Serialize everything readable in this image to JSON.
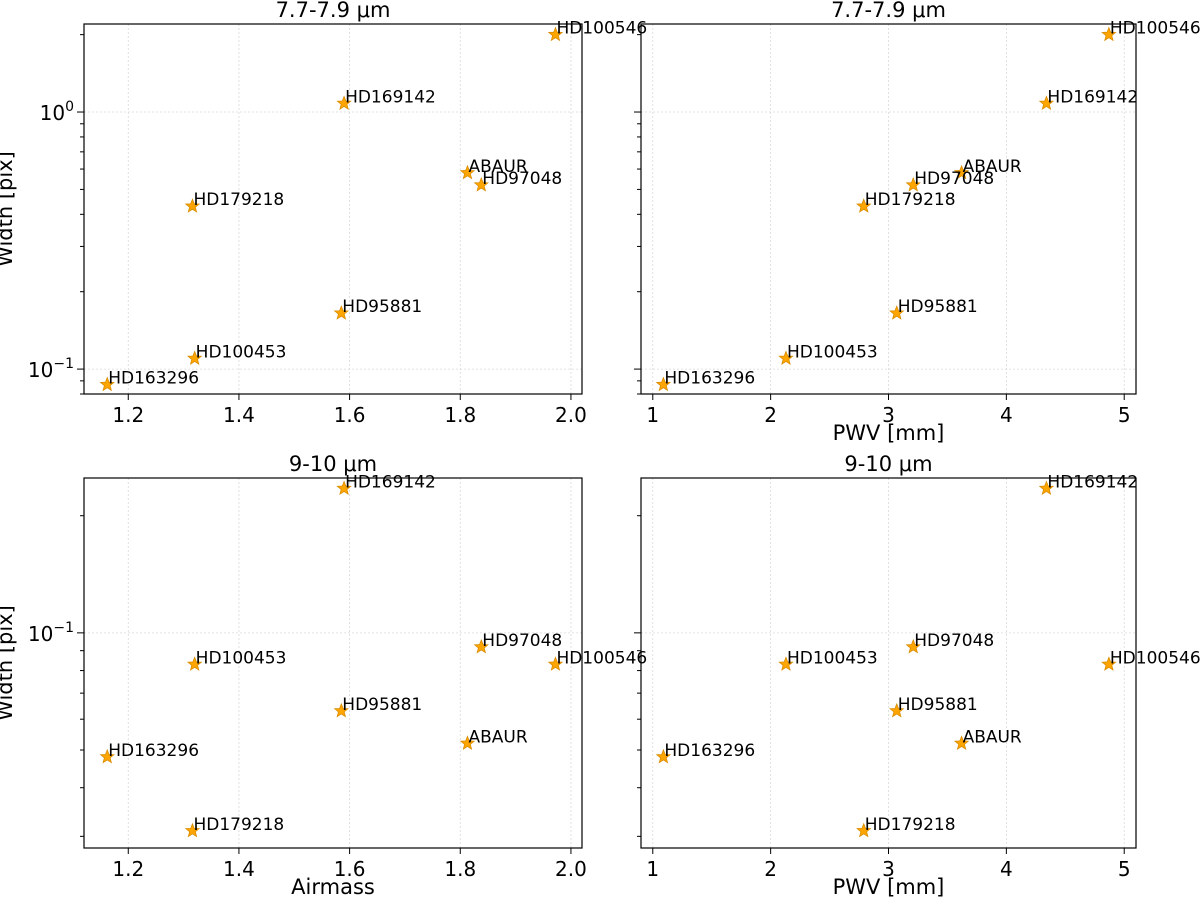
{
  "chart_data": [
    {
      "type": "scatter",
      "title": "7.7-7.9 μm",
      "xlabel": "",
      "ylabel": "Width [pix]",
      "xscale": "linear",
      "yscale": "log",
      "xlim": [
        1.12,
        2.02
      ],
      "ylim": [
        0.08,
        2.2
      ],
      "xticks": [
        {
          "v": 1.2,
          "label": "1.2"
        },
        {
          "v": 1.4,
          "label": "1.4"
        },
        {
          "v": 1.6,
          "label": "1.6"
        },
        {
          "v": 1.8,
          "label": "1.8"
        },
        {
          "v": 2.0,
          "label": "2.0"
        }
      ],
      "yticks": [
        {
          "v": 0.1,
          "base": "10",
          "exp": "−1"
        },
        {
          "v": 1.0,
          "base": "10",
          "exp": "0"
        }
      ],
      "grid": true,
      "points": [
        {
          "name": "HD100546",
          "x": 1.972,
          "y": 2.0
        },
        {
          "name": "HD169142",
          "x": 1.59,
          "y": 1.08
        },
        {
          "name": "ABAUR",
          "x": 1.813,
          "y": 0.58
        },
        {
          "name": "HD97048",
          "x": 1.838,
          "y": 0.52
        },
        {
          "name": "HD179218",
          "x": 1.316,
          "y": 0.43
        },
        {
          "name": "HD95881",
          "x": 1.585,
          "y": 0.165
        },
        {
          "name": "HD100453",
          "x": 1.32,
          "y": 0.11
        },
        {
          "name": "HD163296",
          "x": 1.162,
          "y": 0.087
        }
      ]
    },
    {
      "type": "scatter",
      "title": "7.7-7.9 μm",
      "xlabel": "PWV [mm]",
      "ylabel": "",
      "xscale": "linear",
      "yscale": "log",
      "xlim": [
        0.9,
        5.1
      ],
      "ylim": [
        0.08,
        2.2
      ],
      "xticks": [
        {
          "v": 1,
          "label": "1"
        },
        {
          "v": 2,
          "label": "2"
        },
        {
          "v": 3,
          "label": "3"
        },
        {
          "v": 4,
          "label": "4"
        },
        {
          "v": 5,
          "label": "5"
        }
      ],
      "yticks": [],
      "grid": true,
      "points": [
        {
          "name": "HD100546",
          "x": 4.87,
          "y": 2.0
        },
        {
          "name": "HD169142",
          "x": 4.34,
          "y": 1.08
        },
        {
          "name": "ABAUR",
          "x": 3.62,
          "y": 0.58
        },
        {
          "name": "HD97048",
          "x": 3.21,
          "y": 0.52
        },
        {
          "name": "HD179218",
          "x": 2.79,
          "y": 0.43
        },
        {
          "name": "HD95881",
          "x": 3.07,
          "y": 0.165
        },
        {
          "name": "HD100453",
          "x": 2.13,
          "y": 0.11
        },
        {
          "name": "HD163296",
          "x": 1.09,
          "y": 0.087
        }
      ]
    },
    {
      "type": "scatter",
      "title": "9-10 μm",
      "xlabel": "Airmass",
      "ylabel": "Width [pix]",
      "xscale": "linear",
      "yscale": "log",
      "xlim": [
        1.12,
        2.02
      ],
      "ylim": [
        0.028,
        0.25
      ],
      "xticks": [
        {
          "v": 1.2,
          "label": "1.2"
        },
        {
          "v": 1.4,
          "label": "1.4"
        },
        {
          "v": 1.6,
          "label": "1.6"
        },
        {
          "v": 1.8,
          "label": "1.8"
        },
        {
          "v": 2.0,
          "label": "2.0"
        }
      ],
      "yticks": [
        {
          "v": 0.1,
          "base": "10",
          "exp": "−1"
        }
      ],
      "grid": true,
      "points": [
        {
          "name": "HD169142",
          "x": 1.59,
          "y": 0.235
        },
        {
          "name": "HD97048",
          "x": 1.838,
          "y": 0.092
        },
        {
          "name": "HD100546",
          "x": 1.972,
          "y": 0.083
        },
        {
          "name": "HD100453",
          "x": 1.32,
          "y": 0.083
        },
        {
          "name": "HD95881",
          "x": 1.585,
          "y": 0.063
        },
        {
          "name": "ABAUR",
          "x": 1.813,
          "y": 0.052
        },
        {
          "name": "HD163296",
          "x": 1.162,
          "y": 0.048
        },
        {
          "name": "HD179218",
          "x": 1.316,
          "y": 0.031
        }
      ]
    },
    {
      "type": "scatter",
      "title": "9-10 μm",
      "xlabel": "PWV [mm]",
      "ylabel": "",
      "xscale": "linear",
      "yscale": "log",
      "xlim": [
        0.9,
        5.1
      ],
      "ylim": [
        0.028,
        0.25
      ],
      "xticks": [
        {
          "v": 1,
          "label": "1"
        },
        {
          "v": 2,
          "label": "2"
        },
        {
          "v": 3,
          "label": "3"
        },
        {
          "v": 4,
          "label": "4"
        },
        {
          "v": 5,
          "label": "5"
        }
      ],
      "yticks": [],
      "grid": true,
      "points": [
        {
          "name": "HD169142",
          "x": 4.34,
          "y": 0.235
        },
        {
          "name": "HD97048",
          "x": 3.21,
          "y": 0.092
        },
        {
          "name": "HD100546",
          "x": 4.87,
          "y": 0.083
        },
        {
          "name": "HD100453",
          "x": 2.13,
          "y": 0.083
        },
        {
          "name": "HD95881",
          "x": 3.07,
          "y": 0.063
        },
        {
          "name": "ABAUR",
          "x": 3.62,
          "y": 0.052
        },
        {
          "name": "HD163296",
          "x": 1.09,
          "y": 0.048
        },
        {
          "name": "HD179218",
          "x": 2.79,
          "y": 0.031
        }
      ]
    }
  ],
  "colors": {
    "marker": "#ffa500",
    "marker_edge": "#d98c00",
    "grid": "#d9d9d9"
  }
}
